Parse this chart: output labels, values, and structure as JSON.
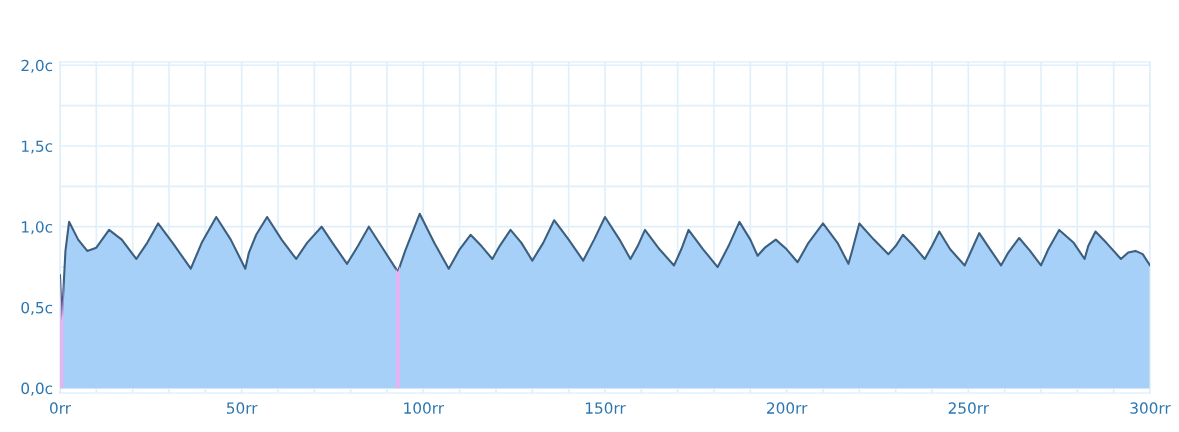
{
  "chart_data": {
    "type": "area",
    "xlim": [
      0,
      300
    ],
    "ylim": [
      -0.03,
      2.02
    ],
    "xticks": [
      {
        "value": 0,
        "label": "0rr"
      },
      {
        "value": 50,
        "label": "50rr"
      },
      {
        "value": 100,
        "label": "100rr"
      },
      {
        "value": 150,
        "label": "150rr"
      },
      {
        "value": 200,
        "label": "200rr"
      },
      {
        "value": 250,
        "label": "250rr"
      },
      {
        "value": 300,
        "label": "300rr"
      }
    ],
    "yticks": [
      {
        "value": 0,
        "label": "0,0c"
      },
      {
        "value": 0.5,
        "label": "0,5c"
      },
      {
        "value": 1.0,
        "label": "1,0c"
      },
      {
        "value": 1.5,
        "label": "1,5c"
      },
      {
        "value": 2.0,
        "label": "2,0c"
      }
    ],
    "grid": true,
    "ref_lines": [
      {
        "axis": "x",
        "value": 0.4,
        "color": "#e3b4f2"
      },
      {
        "axis": "x",
        "value": 93,
        "color": "#e3b4f2"
      }
    ],
    "series": [
      {
        "color": "#3d5f7e",
        "x": [
          0,
          0.5,
          1.5,
          2.5,
          5,
          7.5,
          10,
          13.5,
          17,
          21,
          24,
          27,
          31,
          36,
          39,
          43,
          47,
          51,
          52,
          54,
          57,
          61,
          65,
          68,
          72,
          75,
          79,
          82,
          85,
          89,
          93,
          95,
          99,
          103,
          107,
          110,
          113,
          116,
          119,
          121,
          124,
          127,
          130,
          133,
          136,
          140,
          144,
          147,
          150,
          154,
          157,
          159,
          161,
          165,
          169,
          171,
          173,
          177,
          181,
          184,
          187,
          190,
          192,
          194,
          197,
          200,
          203,
          206,
          210,
          214,
          217,
          218,
          220,
          224,
          228,
          230,
          232,
          235,
          238,
          240,
          242,
          245,
          249,
          251,
          253,
          256,
          259,
          261,
          264,
          267,
          270,
          272,
          275,
          279,
          282,
          283,
          285,
          288,
          292,
          294,
          296,
          298,
          300
        ],
        "values": [
          0.7,
          0.42,
          0.85,
          1.03,
          0.92,
          0.85,
          0.87,
          0.98,
          0.92,
          0.8,
          0.9,
          1.02,
          0.9,
          0.74,
          0.9,
          1.06,
          0.92,
          0.74,
          0.84,
          0.95,
          1.06,
          0.92,
          0.8,
          0.9,
          1.0,
          0.9,
          0.77,
          0.88,
          1.0,
          0.86,
          0.72,
          0.85,
          1.08,
          0.9,
          0.74,
          0.86,
          0.95,
          0.88,
          0.8,
          0.88,
          0.98,
          0.9,
          0.79,
          0.9,
          1.04,
          0.92,
          0.79,
          0.92,
          1.06,
          0.92,
          0.8,
          0.88,
          0.98,
          0.86,
          0.76,
          0.86,
          0.98,
          0.86,
          0.75,
          0.88,
          1.03,
          0.92,
          0.82,
          0.87,
          0.92,
          0.86,
          0.78,
          0.9,
          1.02,
          0.9,
          0.77,
          0.85,
          1.02,
          0.92,
          0.83,
          0.88,
          0.95,
          0.88,
          0.8,
          0.88,
          0.97,
          0.86,
          0.76,
          0.86,
          0.96,
          0.86,
          0.76,
          0.84,
          0.93,
          0.85,
          0.76,
          0.86,
          0.98,
          0.9,
          0.8,
          0.88,
          0.97,
          0.9,
          0.8,
          0.84,
          0.85,
          0.83,
          0.76
        ]
      }
    ]
  }
}
